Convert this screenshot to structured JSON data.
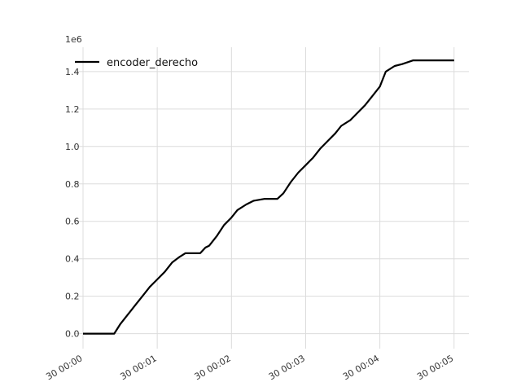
{
  "chart_data": {
    "type": "line",
    "title": "",
    "xlabel": "",
    "ylabel": "",
    "y_scale_label": "1e6",
    "grid": true,
    "legend_position": "top-left",
    "xlim": [
      0,
      5.2
    ],
    "ylim": [
      -0.08,
      1.53
    ],
    "x_ticks": [
      {
        "value": 0,
        "label": "30 00:00"
      },
      {
        "value": 1,
        "label": "30 00:01"
      },
      {
        "value": 2,
        "label": "30 00:02"
      },
      {
        "value": 3,
        "label": "30 00:03"
      },
      {
        "value": 4,
        "label": "30 00:04"
      },
      {
        "value": 5,
        "label": "30 00:05"
      }
    ],
    "y_ticks": [
      {
        "value": 0.0,
        "label": "0.0"
      },
      {
        "value": 0.2,
        "label": "0.2"
      },
      {
        "value": 0.4,
        "label": "0.4"
      },
      {
        "value": 0.6,
        "label": "0.6"
      },
      {
        "value": 0.8,
        "label": "0.8"
      },
      {
        "value": 1.0,
        "label": "1.0"
      },
      {
        "value": 1.2,
        "label": "1.2"
      },
      {
        "value": 1.4,
        "label": "1.4"
      }
    ],
    "series": [
      {
        "name": "encoder_derecho",
        "color": "#000000",
        "points": [
          [
            0.0,
            0.0
          ],
          [
            0.42,
            0.0
          ],
          [
            0.5,
            0.05
          ],
          [
            0.6,
            0.1
          ],
          [
            0.7,
            0.15
          ],
          [
            0.8,
            0.2
          ],
          [
            0.9,
            0.25
          ],
          [
            1.0,
            0.29
          ],
          [
            1.1,
            0.33
          ],
          [
            1.2,
            0.38
          ],
          [
            1.3,
            0.41
          ],
          [
            1.38,
            0.43
          ],
          [
            1.5,
            0.43
          ],
          [
            1.58,
            0.43
          ],
          [
            1.65,
            0.46
          ],
          [
            1.7,
            0.47
          ],
          [
            1.8,
            0.52
          ],
          [
            1.9,
            0.58
          ],
          [
            2.0,
            0.62
          ],
          [
            2.08,
            0.66
          ],
          [
            2.2,
            0.69
          ],
          [
            2.3,
            0.71
          ],
          [
            2.45,
            0.72
          ],
          [
            2.62,
            0.72
          ],
          [
            2.7,
            0.75
          ],
          [
            2.8,
            0.81
          ],
          [
            2.9,
            0.86
          ],
          [
            3.0,
            0.9
          ],
          [
            3.1,
            0.94
          ],
          [
            3.2,
            0.99
          ],
          [
            3.3,
            1.03
          ],
          [
            3.4,
            1.07
          ],
          [
            3.48,
            1.11
          ],
          [
            3.6,
            1.14
          ],
          [
            3.7,
            1.18
          ],
          [
            3.8,
            1.22
          ],
          [
            3.9,
            1.27
          ],
          [
            4.0,
            1.32
          ],
          [
            4.08,
            1.4
          ],
          [
            4.2,
            1.43
          ],
          [
            4.3,
            1.44
          ],
          [
            4.45,
            1.46
          ],
          [
            4.6,
            1.46
          ],
          [
            4.8,
            1.46
          ],
          [
            5.0,
            1.46
          ]
        ]
      }
    ]
  }
}
